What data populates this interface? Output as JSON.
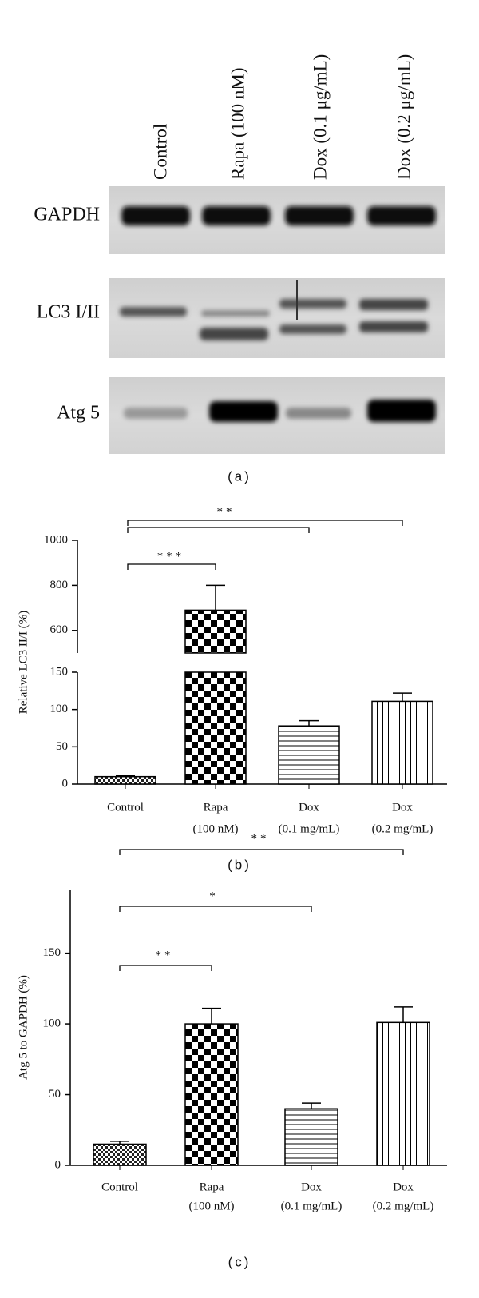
{
  "blot": {
    "lanes": [
      "Control",
      "Rapa (100 nM)",
      "Dox (0.1 μg/mL)",
      "Dox (0.2 μg/mL)"
    ],
    "rows": [
      "GAPDH",
      "LC3 I/II",
      "Atg 5"
    ],
    "caption": "(a)"
  },
  "chart_data": [
    {
      "type": "bar",
      "caption": "(b)",
      "ylabel": "Relative LC3 II/I (%)",
      "categories": [
        [
          "Control"
        ],
        [
          "Rapa",
          "(100 nM)"
        ],
        [
          "Dox",
          "(0.1 mg/mL)"
        ],
        [
          "Dox",
          "(0.2 mg/mL)"
        ]
      ],
      "values": [
        10,
        690,
        78,
        111
      ],
      "errors": [
        1,
        110,
        7,
        11
      ],
      "axis_segments": [
        {
          "ylim": [
            0,
            150
          ],
          "yticks": [
            0,
            50,
            100,
            150
          ]
        },
        {
          "ylim": [
            500,
            1000
          ],
          "yticks": [
            600,
            800,
            1000
          ]
        }
      ],
      "significance": [
        "***",
        "**"
      ]
    },
    {
      "type": "bar",
      "caption": "(c)",
      "ylabel": "Atg 5 to GAPDH (%)",
      "categories": [
        [
          "Control"
        ],
        [
          "Rapa",
          "(100 nM)"
        ],
        [
          "Dox",
          "(0.1 mg/mL)"
        ],
        [
          "Dox",
          "(0.2 mg/mL)"
        ]
      ],
      "values": [
        15,
        100,
        40,
        101
      ],
      "errors": [
        2,
        11,
        4,
        11
      ],
      "ylim": [
        0,
        195
      ],
      "yticks": [
        0,
        50,
        100,
        150
      ],
      "significance": [
        "**",
        "*",
        "**"
      ]
    }
  ]
}
